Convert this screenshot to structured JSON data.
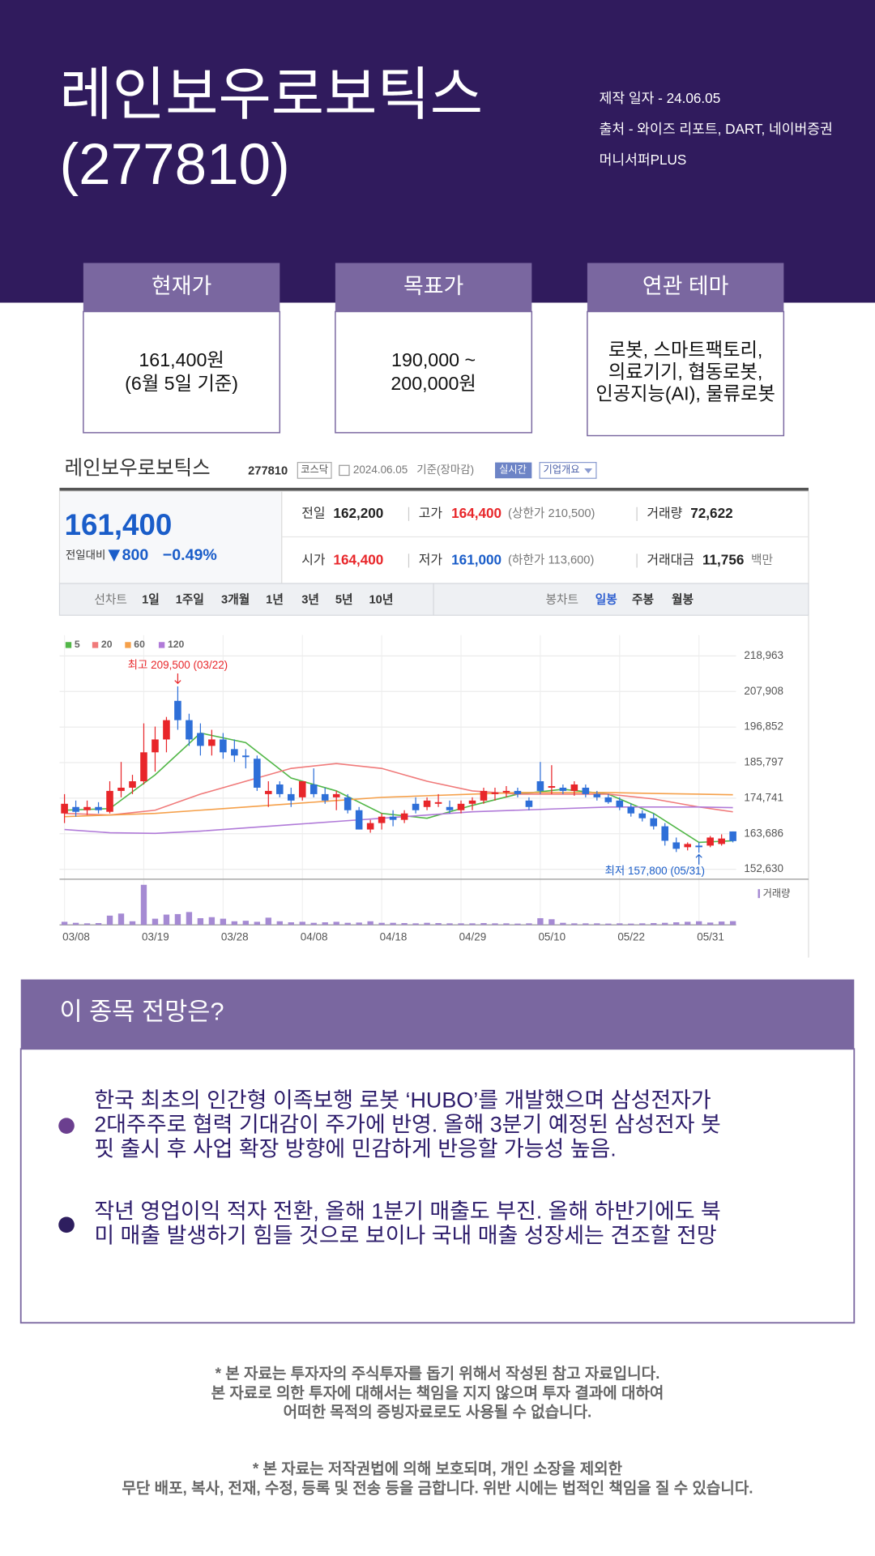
{
  "header": {
    "title": [
      "레인보우로보틱스",
      "(277810)"
    ],
    "info": [
      "제작 일자 - 24.06.05",
      "출처 - 와이즈 리포트, DART, 네이버증권",
      "머니서퍼PLUS"
    ]
  },
  "cards": [
    {
      "label": "현재가",
      "text": [
        "161,400원",
        "(6월 5일 기준)"
      ]
    },
    {
      "label": "목표가",
      "text": [
        "190,000 ~",
        "200,000원"
      ]
    },
    {
      "label": "연관 테마",
      "text": [
        "로봇, 스마트팩토리,",
        "의료기기, 협동로봇,",
        "인공지능(AI), 물류로봇"
      ]
    }
  ],
  "quote": {
    "name": "레인보우로보틱스",
    "code": "277810",
    "market": "코스닥",
    "date": "2024.06.05",
    "basis": "기준(장마감)",
    "realtime": "실시간",
    "company": "기업개요",
    "price": "161,400",
    "change_label": "전일대비",
    "change": "800",
    "change_pct": "−0.49%",
    "price_color": "#1a5dc9",
    "stats": [
      {
        "label": "전일",
        "value": "162,200",
        "color": "#222"
      },
      {
        "label": "고가",
        "value": "164,400",
        "note": "(상한가 210,500)",
        "color": "#e8262a"
      },
      {
        "label": "거래량",
        "value": "72,622",
        "color": "#222"
      },
      {
        "label": "시가",
        "value": "164,400",
        "color": "#e8262a"
      },
      {
        "label": "저가",
        "value": "161,000",
        "note": "(하한가 113,600)",
        "color": "#1a5dc9"
      },
      {
        "label": "거래대금",
        "value": "11,756",
        "note": "백만",
        "color": "#222"
      }
    ],
    "line_tabs": [
      "선차트",
      "1일",
      "1주일",
      "3개월",
      "1년",
      "3년",
      "5년",
      "10년"
    ],
    "candle_tabs": [
      "봉차트",
      "일봉",
      "주봉",
      "월봉"
    ]
  },
  "chart_data": {
    "type": "candlestick",
    "categories": [
      "03/08",
      null,
      null,
      null,
      null,
      null,
      null,
      "03/19",
      null,
      null,
      null,
      null,
      null,
      null,
      "03/28",
      null,
      null,
      null,
      null,
      null,
      null,
      "04/08",
      null,
      null,
      null,
      null,
      null,
      null,
      "04/18",
      null,
      null,
      null,
      null,
      null,
      null,
      "04/29",
      null,
      null,
      null,
      null,
      null,
      null,
      "05/10",
      null,
      null,
      null,
      null,
      null,
      null,
      "05/22",
      null,
      null,
      null,
      null,
      null,
      null,
      "05/31",
      null,
      null,
      null
    ],
    "open": [
      170000,
      172000,
      171000,
      172000,
      170500,
      177000,
      178000,
      180000,
      189000,
      193000,
      205000,
      199000,
      195000,
      191000,
      193000,
      190000,
      188000,
      187000,
      176000,
      179000,
      176000,
      175000,
      179000,
      176000,
      175000,
      175000,
      171000,
      165000,
      167000,
      169000,
      168000,
      173000,
      172000,
      173000,
      172000,
      171000,
      173000,
      174000,
      176000,
      176500,
      177000,
      174000,
      180000,
      178000,
      178000,
      177000,
      178000,
      176000,
      175000,
      174000,
      172000,
      170000,
      168500,
      166000,
      161000,
      159500,
      160000,
      160000,
      160500,
      164400
    ],
    "high": [
      176000,
      174000,
      174000,
      173500,
      180000,
      186000,
      182000,
      198000,
      197000,
      200000,
      209500,
      201000,
      198000,
      196000,
      195000,
      193000,
      190000,
      188000,
      180000,
      180000,
      178000,
      180000,
      184000,
      178000,
      177000,
      176000,
      172000,
      168000,
      170000,
      171000,
      171000,
      175000,
      175000,
      176000,
      174000,
      174000,
      175000,
      178000,
      178000,
      178500,
      178000,
      175000,
      186000,
      185000,
      179000,
      180000,
      179000,
      177000,
      176000,
      175000,
      173000,
      171000,
      170000,
      167000,
      162500,
      161000,
      161000,
      163000,
      163500,
      164400
    ],
    "low": [
      167000,
      169000,
      169500,
      170000,
      170000,
      175000,
      176000,
      179000,
      183000,
      189000,
      196000,
      191000,
      188000,
      188000,
      187000,
      186000,
      184000,
      177000,
      172000,
      175000,
      172000,
      174000,
      175000,
      173000,
      171000,
      170000,
      165000,
      164000,
      165000,
      166000,
      167000,
      170000,
      171000,
      172000,
      170000,
      170000,
      171000,
      173000,
      174000,
      175000,
      175000,
      171000,
      176000,
      176000,
      176000,
      175500,
      175000,
      174000,
      173000,
      171000,
      169000,
      167500,
      165000,
      160000,
      158000,
      158500,
      157800,
      159500,
      160000,
      161000
    ],
    "close": [
      173000,
      170500,
      172000,
      171000,
      177000,
      178000,
      180000,
      189000,
      193000,
      199000,
      199000,
      193000,
      191000,
      193000,
      189000,
      188000,
      187500,
      178000,
      177000,
      176000,
      174000,
      180000,
      176000,
      174000,
      176000,
      171000,
      165000,
      167000,
      169000,
      168000,
      170000,
      171000,
      174000,
      173500,
      171000,
      173000,
      174000,
      177000,
      176500,
      177000,
      176000,
      172000,
      177000,
      178500,
      177000,
      179000,
      176000,
      175000,
      173500,
      172000,
      170000,
      168500,
      166000,
      161500,
      159000,
      160500,
      159500,
      162500,
      162200,
      161400
    ],
    "up_color": "#e8262a",
    "down_color": "#2e6fd8",
    "ylim": [
      149544,
      222357
    ],
    "yticks": [
      {
        "value": 152630,
        "label": "152,630"
      },
      {
        "value": 163686,
        "label": "163,686"
      },
      {
        "value": 174741,
        "label": "174,741"
      },
      {
        "value": 185797,
        "label": "185,797"
      },
      {
        "value": 196852,
        "label": "196,852"
      },
      {
        "value": 207908,
        "label": "207,908"
      },
      {
        "value": 218963,
        "label": "218,963"
      }
    ],
    "grid": true,
    "series": [
      {
        "name": "5",
        "color": "#52b748",
        "x": [
          0,
          4,
          8,
          12,
          16,
          20,
          24,
          28,
          32,
          36,
          40,
          44,
          48,
          52,
          56,
          59
        ],
        "values": [
          171000,
          171500,
          182000,
          195000,
          192000,
          181000,
          177000,
          170000,
          168500,
          172500,
          176000,
          177500,
          176000,
          170000,
          161000,
          161500
        ]
      },
      {
        "name": "20",
        "color": "#f07a7a",
        "x": [
          0,
          4,
          8,
          12,
          16,
          20,
          24,
          28,
          32,
          36,
          40,
          44,
          48,
          52,
          56,
          59
        ],
        "values": [
          170000,
          169500,
          171000,
          176000,
          180000,
          184000,
          185500,
          184000,
          180000,
          177000,
          176000,
          176000,
          176000,
          174500,
          172000,
          170500
        ]
      },
      {
        "name": "60",
        "color": "#f5a04a",
        "x": [
          0,
          4,
          8,
          12,
          16,
          20,
          24,
          28,
          32,
          36,
          40,
          44,
          48,
          52,
          56,
          59
        ],
        "values": [
          169000,
          169500,
          170000,
          171000,
          172000,
          173000,
          174000,
          175000,
          175500,
          176000,
          176500,
          176500,
          176500,
          176200,
          176000,
          175800
        ]
      },
      {
        "name": "120",
        "color": "#b07ad8",
        "x": [
          0,
          4,
          8,
          12,
          16,
          20,
          24,
          28,
          32,
          36,
          40,
          44,
          48,
          52,
          56,
          59
        ],
        "values": [
          165000,
          164000,
          163800,
          164500,
          165500,
          166500,
          167500,
          168500,
          169500,
          170500,
          171000,
          171500,
          172000,
          172000,
          172000,
          171800
        ]
      }
    ],
    "annotations": [
      {
        "text": "최고 209,500 (03/22)",
        "x": 10,
        "value": 209500,
        "color": "#e8262a"
      },
      {
        "text": "최저 157,800 (05/31)",
        "x": 56,
        "value": 157800,
        "color": "#1a5dc9"
      }
    ],
    "volume": {
      "label": "거래량",
      "color": "#a58ad3",
      "ylim": [
        0,
        850000
      ],
      "values": [
        60000,
        40000,
        30000,
        35000,
        180000,
        220000,
        70000,
        780000,
        120000,
        200000,
        210000,
        250000,
        130000,
        150000,
        120000,
        70000,
        80000,
        60000,
        140000,
        70000,
        50000,
        60000,
        40000,
        50000,
        60000,
        40000,
        45000,
        70000,
        40000,
        40000,
        35000,
        30000,
        40000,
        35000,
        30000,
        30000,
        30000,
        35000,
        30000,
        30000,
        25000,
        30000,
        130000,
        110000,
        40000,
        30000,
        30000,
        30000,
        25000,
        30000,
        25000,
        30000,
        35000,
        40000,
        50000,
        60000,
        70000,
        45000,
        65000,
        72622
      ]
    }
  },
  "outlook": {
    "title": "이 종목 전망은?",
    "bullets": [
      [
        "한국 최초의 인간형 이족보행 로봇 ‘HUBO’를 개발했으며 삼성전자가",
        "2대주주로 협력 기대감이 주가에 반영. 올해 3분기 예정된 삼성전자 봇",
        "핏 출시 후 사업 확장 방향에 민감하게 반응할 가능성 높음."
      ],
      [
        "작년 영업이익 적자 전환, 올해 1분기 매출도 부진. 올해 하반기에도 북",
        "미 매출 발생하기 힘들 것으로 보이나 국내 매출 성장세는 견조할 전망"
      ]
    ]
  },
  "disclaimer": [
    [
      "* 본 자료는 투자자의 주식투자를 돕기 위해서 작성된 참고 자료입니다.",
      "본 자료로 의한 투자에 대해서는 책임을 지지 않으며 투자 결과에 대하여",
      "어떠한 목적의 증빙자료로도 사용될 수 없습니다."
    ],
    [
      "* 본 자료는 저작권법에 의해 보호되며, 개인 소장을 제외한",
      "무단 배포, 복사, 전재, 수정, 등록 및 전송 등을 금합니다. 위반 시에는 법적인 책임을 질 수 있습니다."
    ]
  ]
}
